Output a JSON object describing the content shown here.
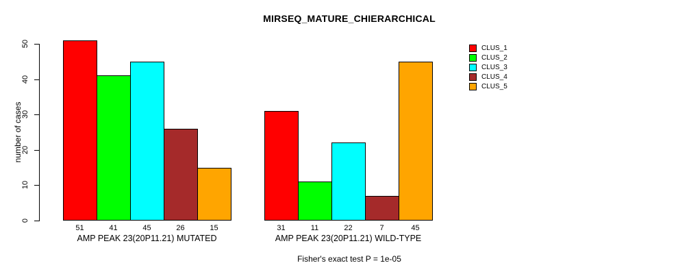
{
  "chart_data": {
    "type": "bar",
    "title": "MIRSEQ_MATURE_CHIERARCHICAL",
    "xlabel": "",
    "ylabel": "number of cases",
    "ylim": [
      0,
      50
    ],
    "yticks": [
      0,
      10,
      20,
      30,
      40,
      50
    ],
    "grid": false,
    "legend_position": "top-right",
    "bar_value_labels_shown": true,
    "categories": [
      "AMP PEAK 23(20P11.21) MUTATED",
      "AMP PEAK 23(20P11.21) WILD-TYPE"
    ],
    "series": [
      {
        "name": "CLUS_1",
        "color": "#FF0000",
        "values": [
          51,
          31
        ]
      },
      {
        "name": "CLUS_2",
        "color": "#00FF00",
        "values": [
          41,
          11
        ]
      },
      {
        "name": "CLUS_3",
        "color": "#00FFFF",
        "values": [
          45,
          22
        ]
      },
      {
        "name": "CLUS_4",
        "color": "#A52A2A",
        "values": [
          26,
          7
        ]
      },
      {
        "name": "CLUS_5",
        "color": "#FFA500",
        "values": [
          15,
          45
        ]
      }
    ],
    "annotation": "Fisher's exact test P = 1e-05"
  },
  "colors": {
    "axis": "#000000",
    "background": "#FFFFFF",
    "text": "#000000"
  }
}
